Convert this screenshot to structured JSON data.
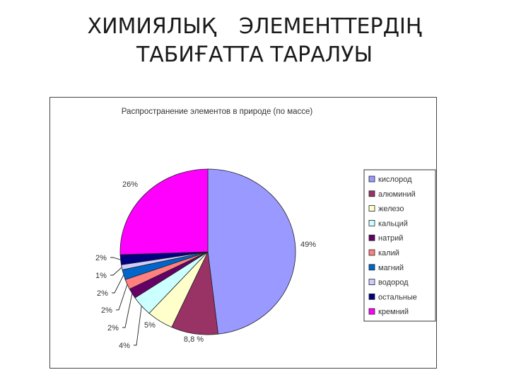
{
  "slide": {
    "title_line1_a": "ХИМИЯЛЫҚ",
    "title_line1_b": "ЭЛЕМЕНТТЕРДІҢ",
    "title_line2": "ТАБИҒАТТА ТАРАЛУЫ"
  },
  "chart_data": {
    "type": "pie",
    "title": "Распространение элементов в природе (по массе)",
    "legend_position": "right",
    "slices": [
      {
        "label": "кислород",
        "value": 49,
        "value_label": "49%",
        "color": "#9999FF"
      },
      {
        "label": "алюминий",
        "value": 8.8,
        "value_label": "8,8 %",
        "color": "#993366"
      },
      {
        "label": "железо",
        "value": 5,
        "value_label": "5%",
        "color": "#FFFFCC"
      },
      {
        "label": "кальций",
        "value": 4,
        "value_label": "4%",
        "color": "#CCFFFF"
      },
      {
        "label": "натрий",
        "value": 2,
        "value_label": "2%",
        "color": "#660066"
      },
      {
        "label": "калий",
        "value": 2,
        "value_label": "2%",
        "color": "#FF8080"
      },
      {
        "label": "магний",
        "value": 2,
        "value_label": "2%",
        "color": "#0066CC"
      },
      {
        "label": "водород",
        "value": 1,
        "value_label": "1%",
        "color": "#CCCCFF"
      },
      {
        "label": "остальные",
        "value": 2,
        "value_label": "2%",
        "color": "#000080"
      },
      {
        "label": "кремний",
        "value": 26,
        "value_label": "26%",
        "color": "#FF00FF"
      }
    ]
  }
}
